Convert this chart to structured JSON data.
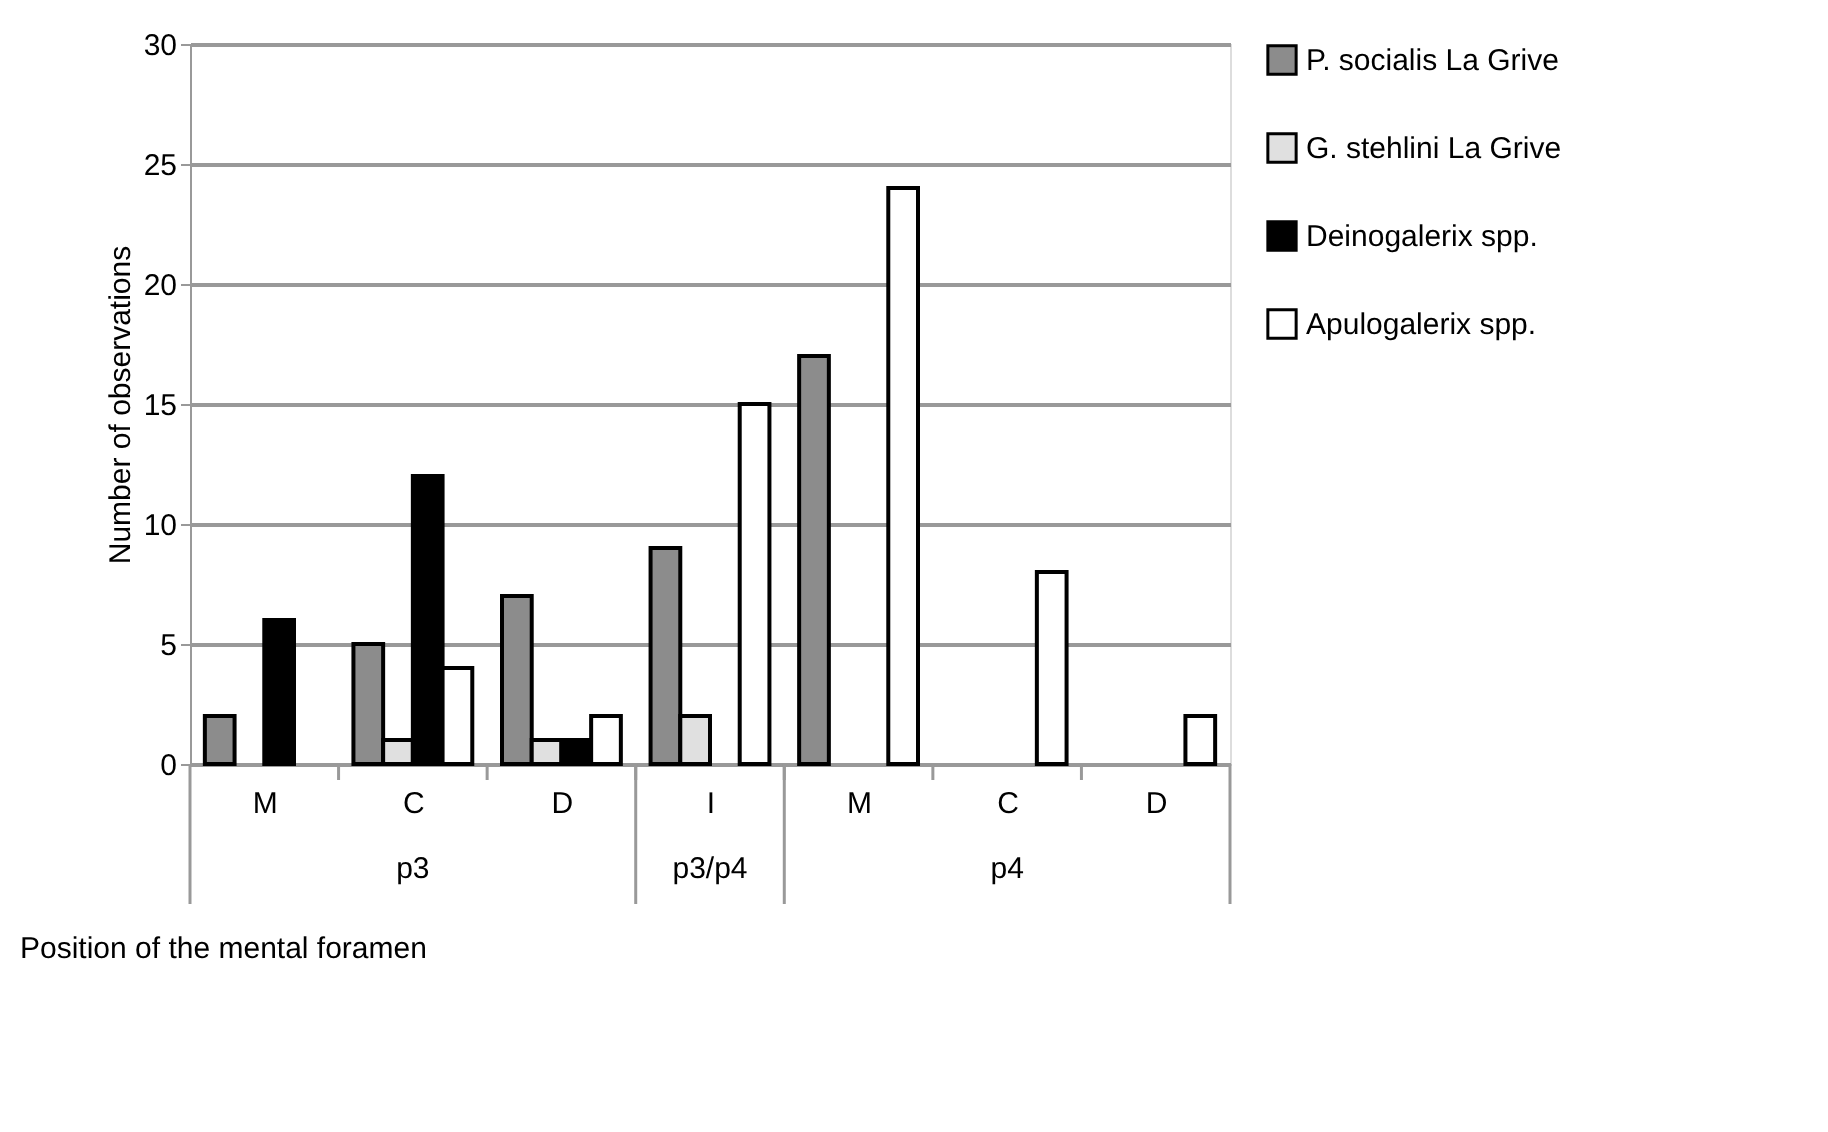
{
  "chart_data": {
    "type": "bar",
    "xlabel": "Position of the mental foramen",
    "ylabel": "Number of observations",
    "categories": [
      "M",
      "C",
      "D",
      "I",
      "M",
      "C",
      "D"
    ],
    "series": [
      {
        "name": "P. socialis La Grive",
        "color": "#8c8c8c",
        "values": [
          2,
          5,
          7,
          9,
          17,
          null,
          null
        ]
      },
      {
        "name": "G. stehlini La Grive",
        "color": "#e0e0e0",
        "values": [
          null,
          1,
          1,
          2,
          null,
          null,
          null
        ]
      },
      {
        "name": "Deinogalerix spp.",
        "color": "#000000",
        "values": [
          6,
          12,
          1,
          null,
          null,
          null,
          null
        ]
      },
      {
        "name": "Apulogalerix spp.",
        "color": "#ffffff",
        "values": [
          null,
          4,
          2,
          15,
          24,
          8,
          2
        ]
      }
    ],
    "annotations": [
      "p3",
      "p3/p4",
      "p4"
    ],
    "ylim": [
      0,
      30
    ],
    "yticks": [
      0,
      5,
      10,
      15,
      20,
      25,
      30
    ],
    "grid": "y",
    "legend": "right"
  }
}
